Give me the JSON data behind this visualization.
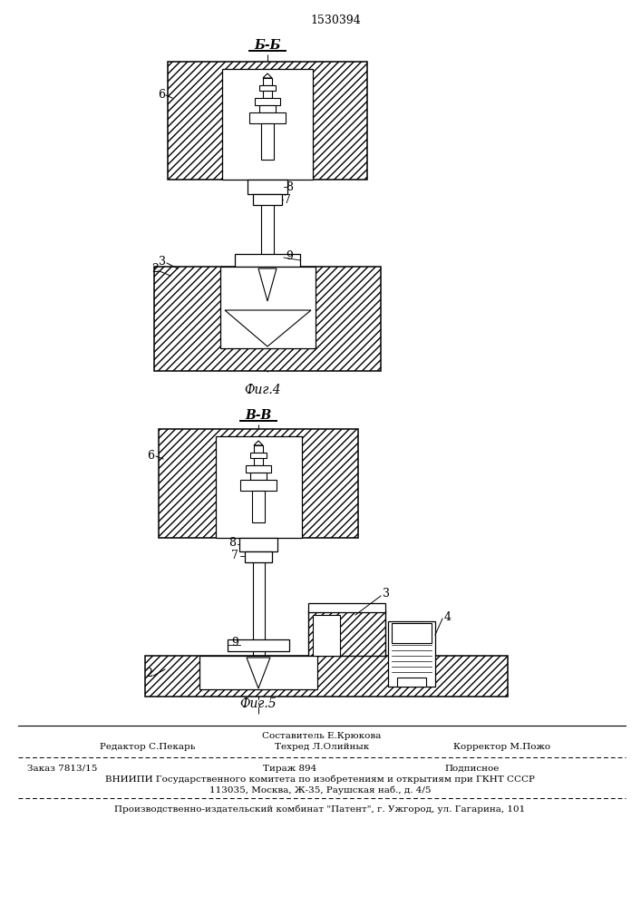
{
  "title_patent": "1530394",
  "fig4_label": "Б-Б",
  "fig5_label": "В-В",
  "fig4_caption": "Фиг.4",
  "fig5_caption": "Фиг.5",
  "bg_color": "#ffffff",
  "footer": {
    "line1_left": "Редактор С.Пекарь",
    "line1_center_top": "Составитель Е.Крюкова",
    "line1_center_bot": "Техред Л.Олийнык",
    "line1_right": "Корректор М.Пожо",
    "line2_left": "Заказ 7813/15",
    "line2_center": "Тираж 894",
    "line2_right": "Подписное",
    "line3": "ВНИИПИ Государственного комитета по изобретениям и открытиям при ГКНТ СССР",
    "line4": "113035, Москва, Ж-35, Раушская наб., д. 4/5",
    "line5": "Производственно-издательский комбинат \"Патент\", г. Ужгород, ул. Гагарина, 101"
  }
}
